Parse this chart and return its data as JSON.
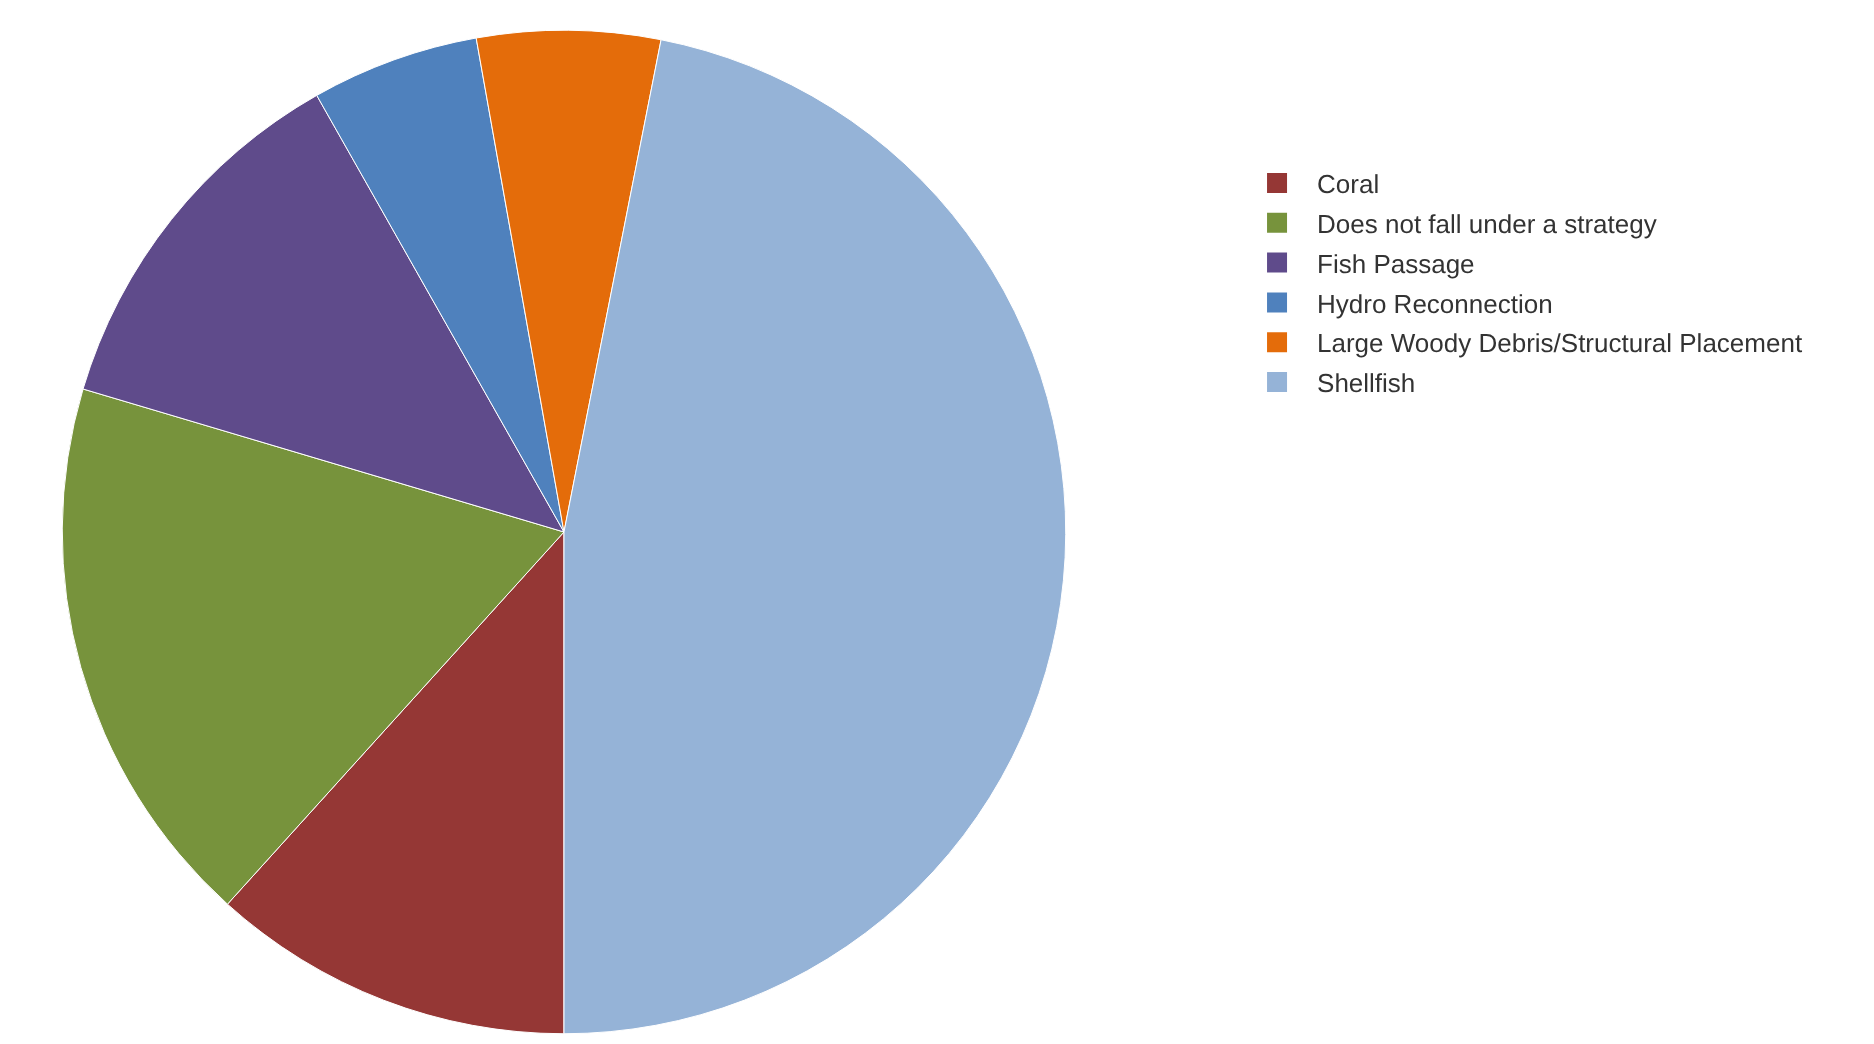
{
  "chart_data": {
    "type": "pie",
    "categories": [
      "Coral",
      "Does not fall under a strategy",
      "Fish Passage",
      "Hydro Reconnection",
      "Large Woody Debris/Structural Placement",
      "Shellfish"
    ],
    "values": [
      11.7,
      17.9,
      12.2,
      5.4,
      5.9,
      46.9
    ],
    "colors": [
      "#953735",
      "#77933c",
      "#5f4b8b",
      "#4f81bd",
      "#e46c0a",
      "#95b3d7"
    ],
    "legend": "right"
  }
}
